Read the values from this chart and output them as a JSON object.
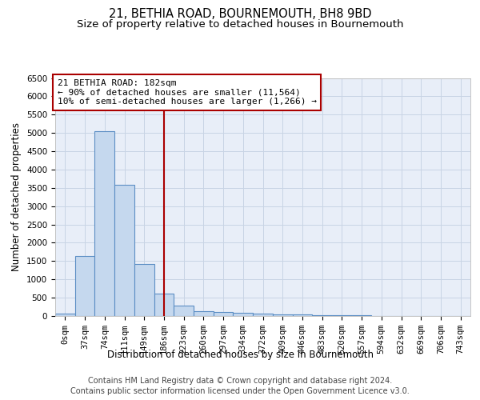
{
  "title": "21, BETHIA ROAD, BOURNEMOUTH, BH8 9BD",
  "subtitle": "Size of property relative to detached houses in Bournemouth",
  "xlabel": "Distribution of detached houses by size in Bournemouth",
  "ylabel": "Number of detached properties",
  "footer_line1": "Contains HM Land Registry data © Crown copyright and database right 2024.",
  "footer_line2": "Contains public sector information licensed under the Open Government Licence v3.0.",
  "annotation_line1": "21 BETHIA ROAD: 182sqm",
  "annotation_line2": "← 90% of detached houses are smaller (11,564)",
  "annotation_line3": "10% of semi-detached houses are larger (1,266) →",
  "bar_values": [
    75,
    1630,
    5050,
    3580,
    1420,
    620,
    290,
    130,
    100,
    80,
    60,
    50,
    40,
    30,
    20,
    15,
    10,
    5,
    5,
    5,
    5
  ],
  "bin_labels": [
    "0sqm",
    "37sqm",
    "74sqm",
    "111sqm",
    "149sqm",
    "186sqm",
    "223sqm",
    "260sqm",
    "297sqm",
    "334sqm",
    "372sqm",
    "409sqm",
    "446sqm",
    "483sqm",
    "520sqm",
    "557sqm",
    "594sqm",
    "632sqm",
    "669sqm",
    "706sqm",
    "743sqm"
  ],
  "bar_color": "#c5d8ee",
  "bar_edge_color": "#5b8ec4",
  "vline_x": 5,
  "vline_color": "#aa0000",
  "ylim": [
    0,
    6500
  ],
  "yticks": [
    0,
    500,
    1000,
    1500,
    2000,
    2500,
    3000,
    3500,
    4000,
    4500,
    5000,
    5500,
    6000,
    6500
  ],
  "grid_color": "#c8d4e4",
  "background_color": "#e8eef8",
  "annotation_box_color": "#ffffff",
  "annotation_box_edge": "#aa0000",
  "title_fontsize": 10.5,
  "subtitle_fontsize": 9.5,
  "axis_label_fontsize": 8.5,
  "tick_fontsize": 7.5,
  "annotation_fontsize": 8.0,
  "footer_fontsize": 7.0
}
